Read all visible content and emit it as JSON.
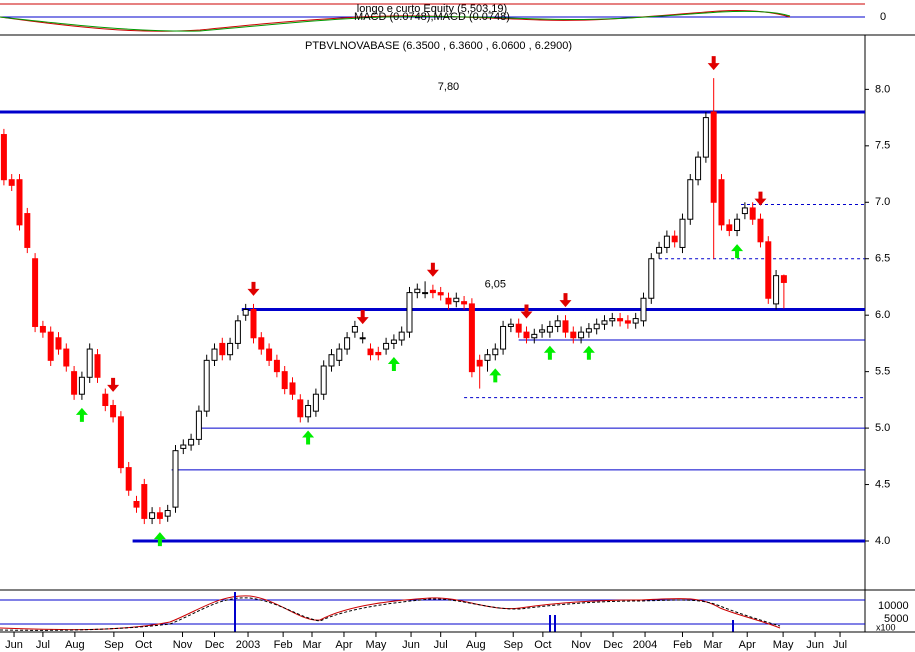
{
  "chart_data": {
    "type": "candlestick",
    "title": "PTBVLNOVABASE (6.3500 , 6.3600 , 6.0600 , 6.2900)",
    "upper_panel": {
      "labels": [
        "longo e curto Equity (5,503.19)",
        "MACD (0.0748),MACD (0.0748)"
      ],
      "tick": "0"
    },
    "lower_panel": {
      "labels": [
        "10000",
        "5000",
        "x100"
      ]
    },
    "annotations": [
      {
        "text": "7,80",
        "value": 7.8,
        "x": 57
      },
      {
        "text": "6,05",
        "value": 6.05,
        "x": 63
      }
    ],
    "xlim": [
      -0.5,
      110.4
    ],
    "xticks": [
      {
        "value": 1.3,
        "label": "Jun"
      },
      {
        "value": 5,
        "label": "Jul"
      },
      {
        "value": 9.1,
        "label": "Aug"
      },
      {
        "value": 14.1,
        "label": "Sep"
      },
      {
        "value": 17.9,
        "label": "Oct"
      },
      {
        "value": 22.9,
        "label": "Nov"
      },
      {
        "value": 27,
        "label": "Dec"
      },
      {
        "value": 31.3,
        "label": "2003"
      },
      {
        "value": 35.8,
        "label": "Feb"
      },
      {
        "value": 39.5,
        "label": "Mar"
      },
      {
        "value": 43.6,
        "label": "Apr"
      },
      {
        "value": 47.7,
        "label": "May"
      },
      {
        "value": 52.2,
        "label": "Jun"
      },
      {
        "value": 56,
        "label": "Jul"
      },
      {
        "value": 60.5,
        "label": "Aug"
      },
      {
        "value": 65.3,
        "label": "Sep"
      },
      {
        "value": 69.1,
        "label": "Oct"
      },
      {
        "value": 74,
        "label": "Nov"
      },
      {
        "value": 78.1,
        "label": "Dec"
      },
      {
        "value": 82.2,
        "label": "2004"
      },
      {
        "value": 87,
        "label": "Feb"
      },
      {
        "value": 90.9,
        "label": "Mar"
      },
      {
        "value": 95.3,
        "label": "Apr"
      },
      {
        "value": 99.9,
        "label": "May"
      },
      {
        "value": 104,
        "label": "Jun"
      },
      {
        "value": 107.2,
        "label": "Jul"
      }
    ],
    "ylim": [
      3.566,
      8.455
    ],
    "yticks": [
      {
        "value": 4,
        "label": "4.0"
      },
      {
        "value": 4.5,
        "label": "4.5"
      },
      {
        "value": 5,
        "label": "5.0"
      },
      {
        "value": 5.5,
        "label": "5.5"
      },
      {
        "value": 6,
        "label": "6.0"
      },
      {
        "value": 6.5,
        "label": "6.5"
      },
      {
        "value": 7,
        "label": "7.0"
      },
      {
        "value": 7.5,
        "label": "7.5"
      },
      {
        "value": 8,
        "label": "8.0"
      }
    ],
    "up_color": "#ffffff",
    "down_color": "#ff0000",
    "line_color": "#0000cc",
    "open": [
      7.6,
      7.2,
      7.2,
      6.9,
      6.5,
      5.9,
      5.85,
      5.8,
      5.7,
      5.5,
      5.3,
      5.45,
      5.65,
      5.3,
      5.2,
      5.1,
      4.65,
      4.35,
      4.5,
      4.2,
      4.25,
      4.22,
      4.3,
      4.82,
      4.85,
      4.9,
      5.15,
      5.6,
      5.75,
      5.65,
      5.75,
      6.0,
      6.05,
      5.8,
      5.7,
      5.6,
      5.5,
      5.4,
      5.25,
      5.1,
      5.15,
      5.3,
      5.55,
      5.6,
      5.7,
      5.85,
      5.8,
      5.7,
      5.67,
      5.7,
      5.75,
      5.78,
      5.85,
      6.2,
      6.2,
      6.22,
      6.2,
      6.15,
      6.12,
      6.12,
      6.1,
      5.6,
      5.6,
      5.65,
      5.7,
      5.9,
      5.92,
      5.85,
      5.8,
      5.85,
      5.85,
      5.9,
      5.95,
      5.85,
      5.8,
      5.85,
      5.88,
      5.92,
      5.95,
      5.97,
      5.95,
      5.93,
      5.95,
      6.15,
      6.55,
      6.6,
      6.7,
      6.6,
      6.85,
      7.2,
      7.4,
      7.8,
      7.2,
      6.8,
      6.75,
      6.9,
      6.95,
      6.85,
      6.65,
      6.1,
      6.35
    ],
    "high": [
      7.65,
      7.25,
      7.25,
      6.95,
      6.55,
      5.95,
      5.9,
      5.85,
      5.75,
      5.55,
      5.5,
      5.75,
      5.7,
      5.35,
      5.25,
      5.15,
      4.7,
      4.4,
      4.55,
      4.3,
      4.3,
      4.32,
      4.85,
      4.9,
      4.95,
      5.2,
      5.65,
      5.75,
      5.8,
      5.8,
      6.0,
      6.1,
      6.1,
      5.85,
      5.75,
      5.65,
      5.55,
      5.45,
      5.3,
      5.25,
      5.35,
      5.6,
      5.7,
      5.75,
      5.85,
      5.95,
      5.85,
      5.75,
      5.72,
      5.8,
      5.83,
      5.9,
      6.25,
      6.28,
      6.3,
      6.27,
      6.25,
      6.2,
      6.2,
      6.17,
      6.15,
      5.65,
      5.7,
      5.75,
      5.95,
      5.97,
      5.97,
      5.9,
      5.88,
      5.92,
      5.95,
      6.0,
      6.0,
      5.9,
      5.9,
      5.93,
      5.97,
      6.0,
      6.02,
      6.02,
      6.0,
      6.02,
      6.2,
      6.55,
      6.65,
      6.75,
      6.75,
      6.9,
      7.25,
      7.45,
      7.8,
      8.1,
      7.25,
      6.85,
      6.9,
      7.0,
      7.0,
      6.9,
      6.7,
      6.4,
      6.36
    ],
    "low": [
      7.15,
      7.1,
      6.75,
      6.55,
      5.85,
      5.8,
      5.55,
      5.65,
      5.5,
      5.25,
      5.25,
      5.4,
      5.4,
      5.15,
      5.05,
      4.6,
      4.4,
      4.25,
      4.15,
      4.15,
      4.15,
      4.17,
      4.25,
      4.77,
      4.8,
      4.85,
      5.1,
      5.55,
      5.6,
      5.6,
      5.7,
      5.95,
      5.75,
      5.65,
      5.55,
      5.45,
      5.3,
      5.25,
      5.05,
      5.05,
      5.1,
      5.25,
      5.5,
      5.55,
      5.65,
      5.8,
      5.75,
      5.6,
      5.6,
      5.65,
      5.7,
      5.73,
      5.8,
      6.15,
      6.15,
      6.15,
      6.13,
      6.05,
      6.07,
      6.05,
      5.45,
      5.35,
      5.5,
      5.6,
      5.65,
      5.85,
      5.8,
      5.75,
      5.75,
      5.8,
      5.8,
      5.85,
      5.8,
      5.75,
      5.75,
      5.8,
      5.83,
      5.87,
      5.9,
      5.9,
      5.88,
      5.88,
      5.9,
      6.1,
      6.5,
      6.55,
      6.6,
      6.55,
      6.8,
      7.15,
      7.35,
      6.5,
      6.75,
      6.7,
      6.7,
      6.85,
      6.8,
      6.6,
      6.1,
      6.05,
      6.06
    ],
    "close": [
      7.2,
      7.15,
      6.8,
      6.6,
      5.9,
      5.85,
      5.6,
      5.7,
      5.55,
      5.3,
      5.45,
      5.7,
      5.45,
      5.2,
      5.1,
      4.65,
      4.45,
      4.3,
      4.2,
      4.25,
      4.2,
      4.27,
      4.8,
      4.85,
      4.9,
      5.15,
      5.6,
      5.7,
      5.65,
      5.75,
      5.95,
      6.05,
      5.8,
      5.7,
      5.6,
      5.5,
      5.35,
      5.3,
      5.1,
      5.2,
      5.3,
      5.55,
      5.65,
      5.7,
      5.8,
      5.9,
      5.8,
      5.65,
      5.65,
      5.75,
      5.78,
      5.85,
      6.2,
      6.23,
      6.2,
      6.2,
      6.18,
      6.1,
      6.15,
      6.1,
      5.5,
      5.55,
      5.65,
      5.7,
      5.9,
      5.92,
      5.85,
      5.8,
      5.83,
      5.87,
      5.9,
      5.95,
      5.85,
      5.8,
      5.85,
      5.88,
      5.92,
      5.95,
      5.97,
      5.95,
      5.93,
      5.97,
      6.15,
      6.5,
      6.6,
      6.7,
      6.65,
      6.85,
      7.2,
      7.4,
      7.75,
      7.0,
      6.8,
      6.75,
      6.85,
      6.95,
      6.85,
      6.65,
      6.15,
      6.35,
      6.29
    ],
    "down_arrows": [
      14,
      32,
      46,
      55,
      67,
      72,
      91,
      97
    ],
    "up_arrows": [
      10,
      20,
      39,
      50,
      63,
      70,
      75,
      94
    ],
    "levels": [
      {
        "value": 7.8,
        "start": -0.5,
        "style": "thick"
      },
      {
        "value": 6.05,
        "start": 30.5,
        "style": "thick"
      },
      {
        "value": 4.0,
        "start": 16.5,
        "style": "thick"
      },
      {
        "value": 5.78,
        "start": 66,
        "style": "thin"
      },
      {
        "value": 5.0,
        "start": 25,
        "style": "thin"
      },
      {
        "value": 4.63,
        "start": 21.5,
        "style": "thin"
      },
      {
        "value": 6.98,
        "start": 94.5,
        "style": "dashed"
      },
      {
        "value": 6.5,
        "start": 84,
        "style": "dashed"
      },
      {
        "value": 5.27,
        "start": 59,
        "style": "dashed"
      }
    ]
  }
}
